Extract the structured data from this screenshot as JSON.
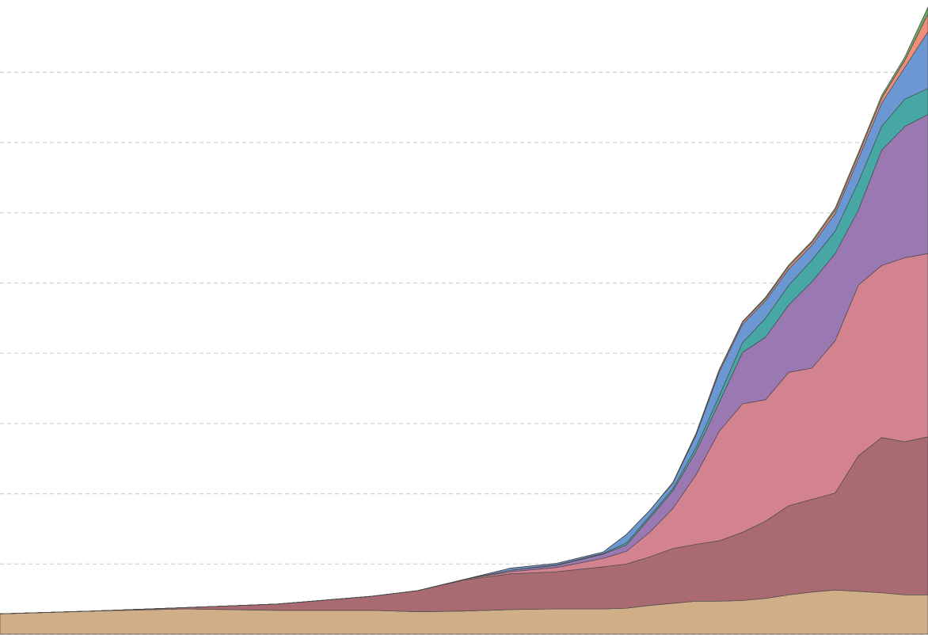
{
  "chart_data": {
    "type": "stacked-area",
    "x": [
      0,
      10,
      20,
      29.9,
      40,
      45,
      50,
      55,
      60,
      65,
      67.5,
      70,
      72.5,
      75,
      77.5,
      80,
      82.5,
      85,
      87.5,
      90,
      92.5,
      95,
      97.5,
      100
    ],
    "xlim": [
      0,
      100
    ],
    "ylim": [
      0,
      9
    ],
    "yticks": [
      0,
      1,
      2,
      3,
      4,
      5,
      6,
      7,
      8
    ],
    "grid": true,
    "series": [
      {
        "color": "#cfae88",
        "values": [
          0.29,
          0.33,
          0.36,
          0.34,
          0.34,
          0.32,
          0.33,
          0.35,
          0.36,
          0.36,
          0.37,
          0.41,
          0.44,
          0.47,
          0.47,
          0.48,
          0.51,
          0.56,
          0.6,
          0.63,
          0.61,
          0.59,
          0.56,
          0.56
        ]
      },
      {
        "color": "#a96b71",
        "values": [
          0,
          0,
          0.02,
          0.09,
          0.2,
          0.3,
          0.44,
          0.51,
          0.53,
          0.6,
          0.63,
          0.69,
          0.78,
          0.81,
          0.86,
          0.97,
          1.1,
          1.27,
          1.32,
          1.38,
          1.93,
          2.21,
          2.18,
          2.25
        ]
      },
      {
        "color": "#d3828f",
        "values": [
          0,
          0,
          0,
          0,
          0,
          0,
          0.01,
          0.03,
          0.06,
          0.12,
          0.18,
          0.35,
          0.57,
          0.99,
          1.56,
          1.83,
          1.73,
          1.9,
          1.87,
          2.17,
          2.43,
          2.45,
          2.62,
          2.61
        ]
      },
      {
        "color": "#9a78b2",
        "values": [
          0,
          0,
          0,
          0,
          0,
          0,
          0,
          0.02,
          0.03,
          0.06,
          0.09,
          0.2,
          0.25,
          0.33,
          0.41,
          0.73,
          0.89,
          0.96,
          1.23,
          1.24,
          1.07,
          1.64,
          1.87,
          1.98
        ]
      },
      {
        "color": "#46a7a5",
        "values": [
          0,
          0,
          0,
          0,
          0,
          0,
          0,
          0,
          0.01,
          0.01,
          0.03,
          0.03,
          0.03,
          0.06,
          0.09,
          0.14,
          0.27,
          0.28,
          0.31,
          0.32,
          0.4,
          0.34,
          0.39,
          0.37
        ]
      },
      {
        "color": "#6b98d2",
        "values": [
          0,
          0,
          0,
          0,
          0,
          0,
          0,
          0.03,
          0.02,
          0.02,
          0.12,
          0.08,
          0.08,
          0.17,
          0.34,
          0.26,
          0.25,
          0.23,
          0.21,
          0.25,
          0.33,
          0.33,
          0.45,
          0.81
        ]
      },
      {
        "color": "#f08d78",
        "values": [
          0,
          0,
          0,
          0,
          0,
          0,
          0,
          0,
          0,
          0,
          0,
          0,
          0.01,
          0.02,
          0.03,
          0.03,
          0.03,
          0.04,
          0.04,
          0.05,
          0.06,
          0.07,
          0.1,
          0.25
        ]
      },
      {
        "color": "#6ea564",
        "values": [
          0,
          0,
          0,
          0,
          0,
          0,
          0,
          0,
          0,
          0,
          0,
          0,
          0,
          0.01,
          0.01,
          0.01,
          0.02,
          0.02,
          0.02,
          0.03,
          0.03,
          0.04,
          0.05,
          0.1
        ]
      }
    ]
  }
}
